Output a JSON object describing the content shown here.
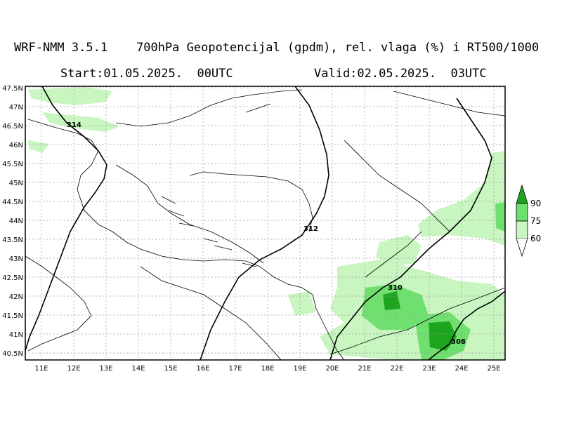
{
  "header": {
    "title": "WRF-NMM 3.5.1    700hPa Geopotencijal (gpdm), rel. vlaga (%) i RT500/1000",
    "start": "Start:01.05.2025.  00UTC",
    "valid": "Valid:02.05.2025.  03UTC"
  },
  "map": {
    "lat_labels": [
      "47.5N",
      "47N",
      "46.5N",
      "46N",
      "45.5N",
      "45N",
      "44.5N",
      "44N",
      "43.5N",
      "43N",
      "42.5N",
      "42N",
      "41.5N",
      "41N",
      "40.5N"
    ],
    "lon_labels": [
      "11E",
      "12E",
      "13E",
      "14E",
      "15E",
      "16E",
      "17E",
      "18E",
      "19E",
      "20E",
      "21E",
      "22E",
      "23E",
      "24E",
      "25E"
    ],
    "contour_labels": [
      "314",
      "312",
      "310",
      "308"
    ]
  },
  "legend": {
    "levels": [
      "90",
      "75",
      "60"
    ],
    "colors": [
      "#1ea51e",
      "#6fe06f",
      "#c8f5c0"
    ]
  }
}
